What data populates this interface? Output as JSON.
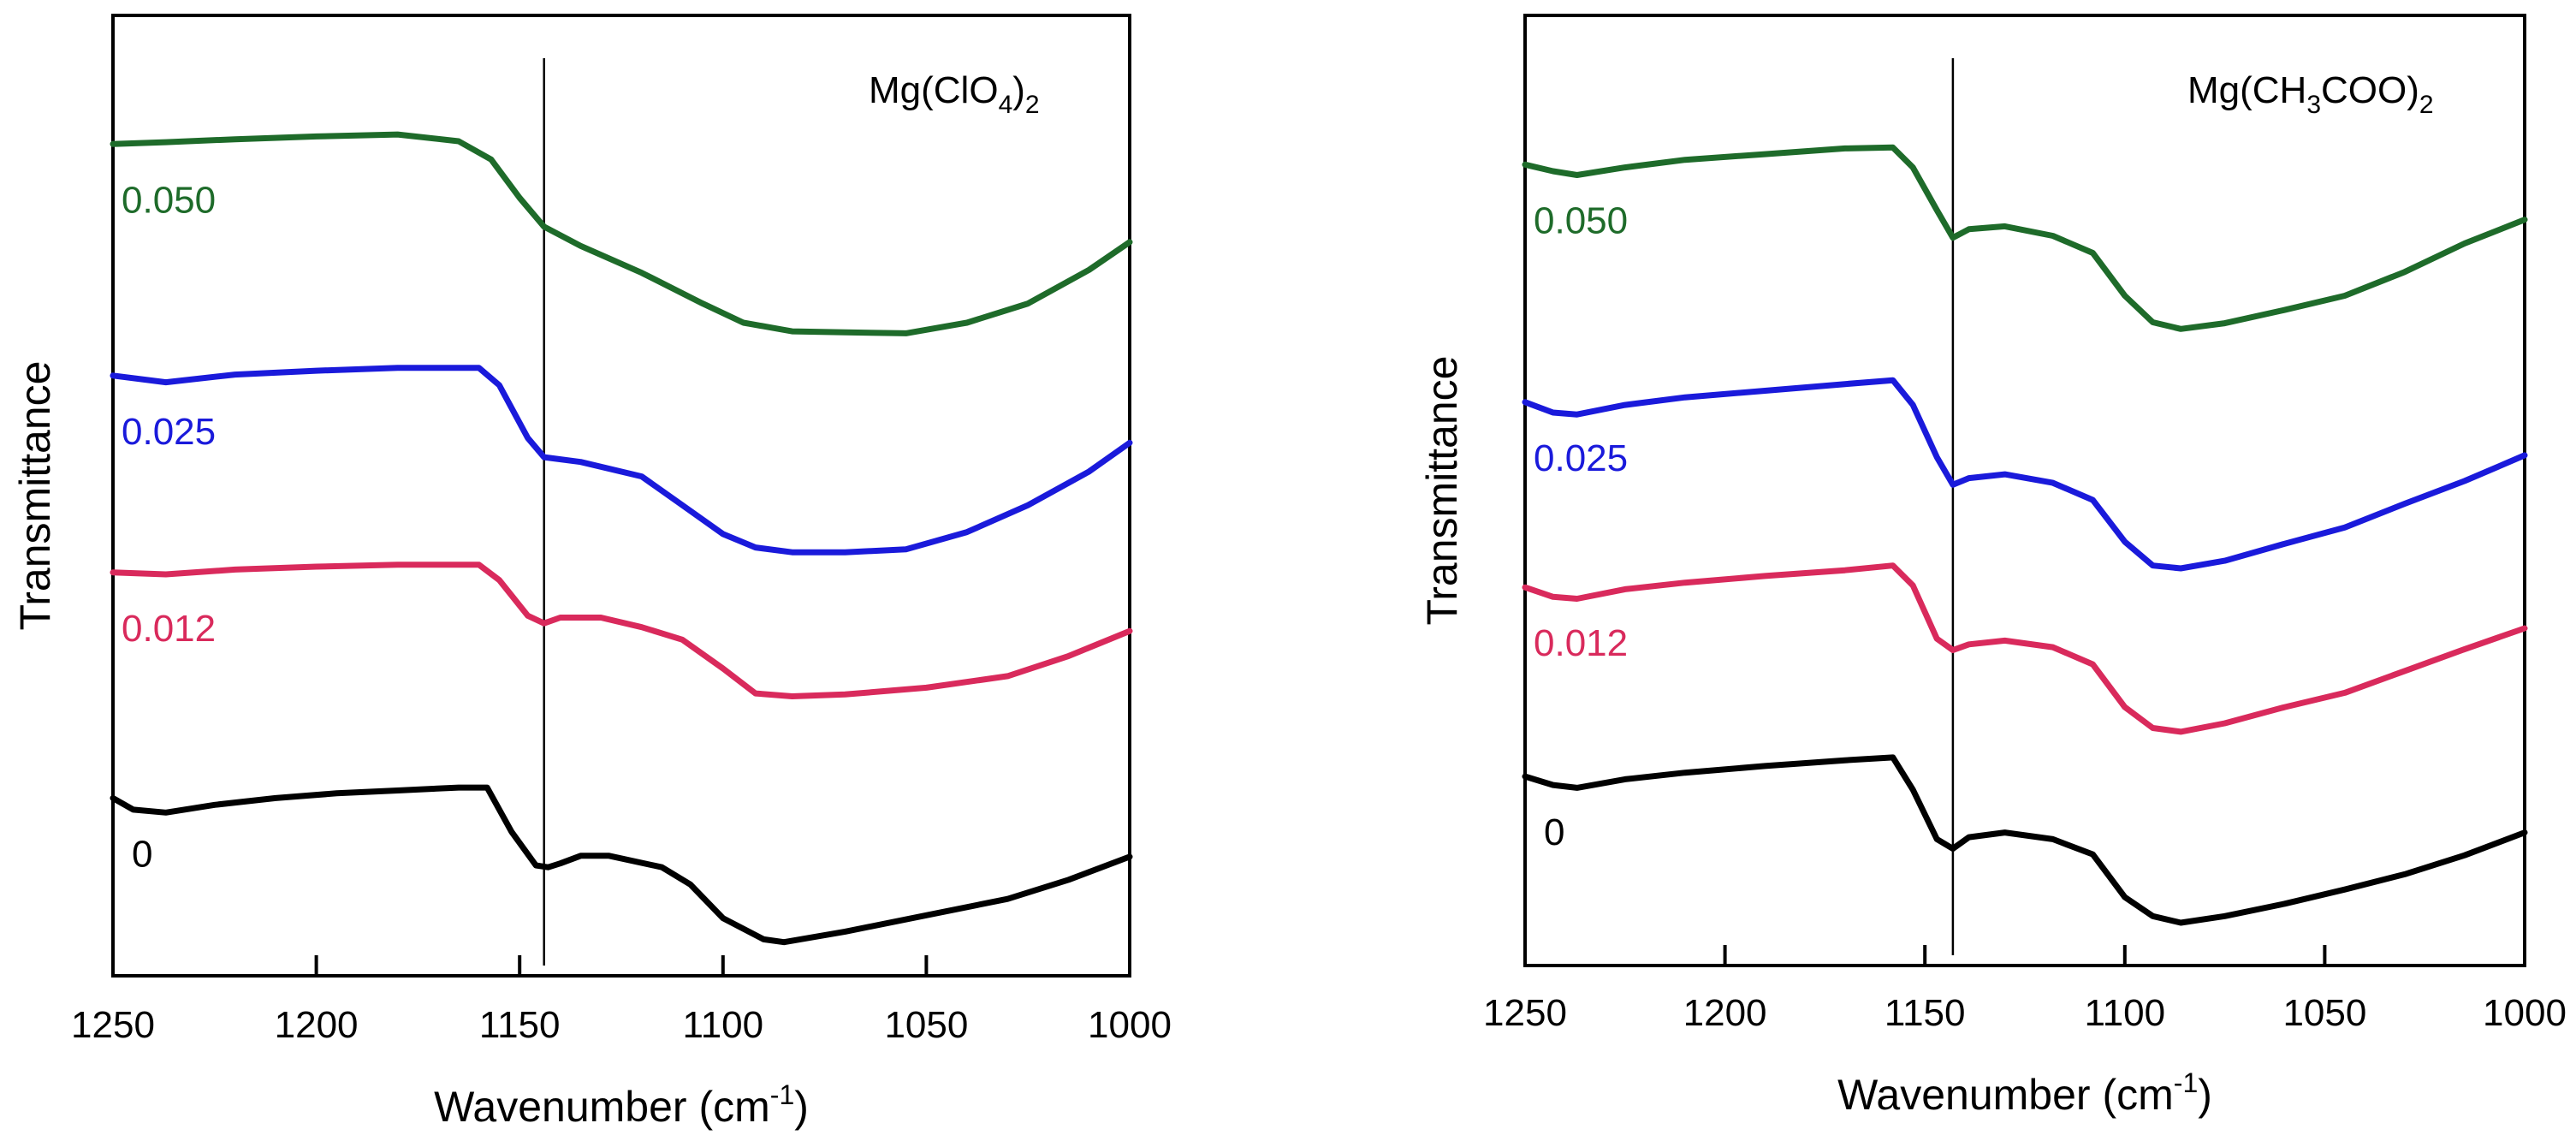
{
  "chart_data": [
    {
      "type": "line",
      "title": "Mg(ClO4)2",
      "title_parts": {
        "base": "Mg(ClO",
        "sub1": "4",
        "mid": ")",
        "sub2": "2"
      },
      "xlabel": "Wavenumber (cm-1)",
      "xlabel_parts": {
        "base": "Wavenumber (cm",
        "sup": "-1",
        "end": ")"
      },
      "ylabel": "Transmittance",
      "xlim": [
        1250,
        1000
      ],
      "ylim": [
        0,
        100
      ],
      "xticks": [
        1250,
        1200,
        1150,
        1100,
        1050,
        1000
      ],
      "xtick_labels": [
        "1250",
        "1200",
        "1150",
        "1100",
        "1050",
        "1000"
      ],
      "reference_line_x": 1144,
      "series": [
        {
          "name": "0.050",
          "label": "0.050",
          "color": "#1e6b2a",
          "x": [
            1250,
            1237,
            1220,
            1200,
            1180,
            1165,
            1157,
            1150,
            1144,
            1135,
            1120,
            1105,
            1095,
            1083,
            1070,
            1055,
            1040,
            1025,
            1010,
            1000
          ],
          "y": [
            86.6,
            86.8,
            87.1,
            87.4,
            87.6,
            86.9,
            85.0,
            81.0,
            78.0,
            76.0,
            73.2,
            70.0,
            68.0,
            67.1,
            67.0,
            66.9,
            68.0,
            70.0,
            73.5,
            76.4
          ]
        },
        {
          "name": "0.025",
          "label": "0.025",
          "color": "#1a1adb",
          "x": [
            1250,
            1237,
            1220,
            1200,
            1180,
            1160,
            1155,
            1148,
            1144,
            1135,
            1120,
            1110,
            1100,
            1092,
            1083,
            1070,
            1055,
            1040,
            1025,
            1010,
            1000
          ],
          "y": [
            62.5,
            61.8,
            62.6,
            63.0,
            63.3,
            63.3,
            61.5,
            56.0,
            54.0,
            53.5,
            52.0,
            49.0,
            46.0,
            44.6,
            44.1,
            44.1,
            44.4,
            46.2,
            49.0,
            52.5,
            55.5
          ]
        },
        {
          "name": "0.012",
          "label": "0.012",
          "color": "#d92a5c",
          "x": [
            1250,
            1237,
            1220,
            1200,
            1180,
            1160,
            1155,
            1148,
            1144,
            1140,
            1130,
            1120,
            1110,
            1100,
            1092,
            1083,
            1070,
            1050,
            1030,
            1015,
            1000
          ],
          "y": [
            42.0,
            41.8,
            42.3,
            42.6,
            42.8,
            42.8,
            41.2,
            37.5,
            36.7,
            37.3,
            37.3,
            36.3,
            35.0,
            32.0,
            29.4,
            29.1,
            29.3,
            30.0,
            31.2,
            33.3,
            35.9
          ]
        },
        {
          "name": "0",
          "label": "0",
          "color": "#000000",
          "x": [
            1250,
            1245,
            1237,
            1225,
            1210,
            1195,
            1180,
            1165,
            1158,
            1152,
            1146,
            1143,
            1140,
            1135,
            1128,
            1115,
            1108,
            1100,
            1090,
            1085,
            1070,
            1050,
            1030,
            1015,
            1000
          ],
          "y": [
            18.5,
            17.3,
            17.0,
            17.8,
            18.5,
            19.0,
            19.3,
            19.6,
            19.6,
            15.0,
            11.5,
            11.3,
            11.7,
            12.5,
            12.5,
            11.3,
            9.5,
            6.0,
            3.8,
            3.5,
            4.6,
            6.3,
            8.0,
            10.0,
            12.4
          ]
        }
      ]
    },
    {
      "type": "line",
      "title": "Mg(CH3COO)2",
      "title_parts": {
        "base": "Mg(CH",
        "sub1": "3",
        "mid": "COO)",
        "sub2": "2"
      },
      "xlabel": "Wavenumber (cm-1)",
      "xlabel_parts": {
        "base": "Wavenumber (cm",
        "sup": "-1",
        "end": ")"
      },
      "ylabel": "Transmittance",
      "xlim": [
        1250,
        1000
      ],
      "ylim": [
        0,
        100
      ],
      "xticks": [
        1250,
        1200,
        1150,
        1100,
        1050,
        1000
      ],
      "xtick_labels": [
        "1250",
        "1200",
        "1150",
        "1100",
        "1050",
        "1000"
      ],
      "reference_line_x": 1143,
      "series": [
        {
          "name": "0.050",
          "label": "0.050",
          "color": "#1e6b2a",
          "x": [
            1250,
            1243,
            1237,
            1225,
            1210,
            1190,
            1170,
            1158,
            1153,
            1147,
            1143,
            1139,
            1130,
            1118,
            1108,
            1100,
            1093,
            1086,
            1075,
            1060,
            1045,
            1030,
            1015,
            1000
          ],
          "y": [
            84.3,
            83.6,
            83.2,
            84.0,
            84.8,
            85.4,
            86.0,
            86.1,
            84.0,
            79.5,
            76.6,
            77.5,
            77.8,
            76.8,
            75.0,
            70.5,
            67.7,
            67.0,
            67.6,
            69.0,
            70.5,
            73.0,
            76.0,
            78.5
          ]
        },
        {
          "name": "0.025",
          "label": "0.025",
          "color": "#1a1adb",
          "x": [
            1250,
            1243,
            1237,
            1225,
            1210,
            1190,
            1170,
            1158,
            1153,
            1147,
            1143,
            1139,
            1130,
            1118,
            1108,
            1100,
            1093,
            1086,
            1075,
            1060,
            1045,
            1030,
            1015,
            1000
          ],
          "y": [
            59.3,
            58.2,
            58.0,
            59.0,
            59.8,
            60.5,
            61.2,
            61.6,
            59.0,
            53.5,
            50.6,
            51.3,
            51.7,
            50.8,
            49.0,
            44.6,
            42.1,
            41.8,
            42.6,
            44.4,
            46.1,
            48.6,
            51.0,
            53.7
          ]
        },
        {
          "name": "0.012",
          "label": "0.012",
          "color": "#d92a5c",
          "x": [
            1250,
            1243,
            1237,
            1225,
            1210,
            1190,
            1170,
            1158,
            1153,
            1147,
            1143,
            1139,
            1130,
            1118,
            1108,
            1100,
            1093,
            1086,
            1075,
            1060,
            1045,
            1030,
            1015,
            1000
          ],
          "y": [
            39.8,
            38.8,
            38.6,
            39.6,
            40.3,
            41.0,
            41.6,
            42.1,
            40.0,
            34.4,
            33.2,
            33.8,
            34.2,
            33.5,
            31.7,
            27.2,
            25.0,
            24.6,
            25.5,
            27.2,
            28.7,
            31.0,
            33.3,
            35.5
          ]
        },
        {
          "name": "0",
          "label": "0",
          "color": "#000000",
          "x": [
            1250,
            1243,
            1237,
            1225,
            1210,
            1190,
            1170,
            1158,
            1153,
            1147,
            1143,
            1139,
            1130,
            1118,
            1108,
            1100,
            1093,
            1086,
            1075,
            1060,
            1045,
            1030,
            1015,
            1000
          ],
          "y": [
            19.9,
            19.0,
            18.7,
            19.6,
            20.3,
            21.0,
            21.6,
            21.9,
            18.5,
            13.3,
            12.3,
            13.5,
            14.0,
            13.3,
            11.7,
            7.2,
            5.2,
            4.5,
            5.2,
            6.5,
            8.0,
            9.6,
            11.6,
            14.0
          ]
        }
      ]
    }
  ]
}
